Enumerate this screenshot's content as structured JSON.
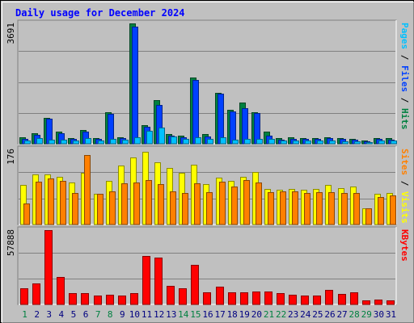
{
  "title": "Daily usage for December 2024",
  "chart_data": [
    {
      "type": "bar",
      "panel": "hits-files-pages",
      "y_max_label": "3691",
      "ylim": [
        0,
        3691
      ],
      "right_label": [
        {
          "text": "Pages",
          "color": "#00c0ff"
        },
        {
          "text": " / ",
          "color": "#000000"
        },
        {
          "text": "Files",
          "color": "#0040ff"
        },
        {
          "text": " / ",
          "color": "#000000"
        },
        {
          "text": "Hits",
          "color": "#008040"
        }
      ],
      "categories": [
        "1",
        "2",
        "3",
        "4",
        "5",
        "6",
        "7",
        "8",
        "9",
        "10",
        "11",
        "12",
        "13",
        "14",
        "15",
        "16",
        "17",
        "18",
        "19",
        "20",
        "21",
        "22",
        "23",
        "24",
        "25",
        "26",
        "27",
        "28",
        "29",
        "30",
        "31"
      ],
      "series": [
        {
          "name": "Hits",
          "color": "#008040",
          "values": [
            190,
            330,
            800,
            380,
            180,
            430,
            170,
            970,
            210,
            3690,
            580,
            1340,
            290,
            240,
            2030,
            290,
            1560,
            1040,
            1270,
            970,
            370,
            170,
            190,
            180,
            170,
            210,
            170,
            160,
            110,
            180,
            170
          ]
        },
        {
          "name": "Files",
          "color": "#0040ff",
          "values": [
            160,
            280,
            760,
            330,
            150,
            370,
            140,
            920,
            170,
            3590,
            520,
            1200,
            250,
            200,
            1950,
            230,
            1530,
            1000,
            1090,
            930,
            250,
            130,
            160,
            150,
            150,
            170,
            140,
            130,
            80,
            140,
            130
          ]
        },
        {
          "name": "Pages",
          "color": "#00c0ff",
          "values": [
            110,
            170,
            130,
            120,
            110,
            170,
            90,
            150,
            130,
            210,
            400,
            500,
            220,
            150,
            210,
            140,
            210,
            130,
            150,
            140,
            140,
            110,
            110,
            90,
            90,
            100,
            70,
            70,
            60,
            90,
            90
          ]
        }
      ]
    },
    {
      "type": "bar",
      "panel": "visits-sites",
      "y_max_label": "176",
      "ylim": [
        0,
        176
      ],
      "right_label": [
        {
          "text": "Sites",
          "color": "#ff8000"
        },
        {
          "text": " / ",
          "color": "#000000"
        },
        {
          "text": "Visits",
          "color": "#ffff00"
        }
      ],
      "categories": [
        "1",
        "2",
        "3",
        "4",
        "5",
        "6",
        "7",
        "8",
        "9",
        "10",
        "11",
        "12",
        "13",
        "14",
        "15",
        "16",
        "17",
        "18",
        "19",
        "20",
        "21",
        "22",
        "23",
        "24",
        "25",
        "26",
        "27",
        "28",
        "29",
        "30",
        "31"
      ],
      "series": [
        {
          "name": "Visits",
          "color": "#ffff00",
          "values": [
            92,
            118,
            118,
            111,
            98,
            122,
            72,
            103,
            138,
            158,
            170,
            146,
            132,
            122,
            140,
            94,
            109,
            103,
            112,
            123,
            84,
            81,
            84,
            82,
            84,
            93,
            86,
            89,
            37,
            71,
            73
          ]
        },
        {
          "name": "Sites",
          "color": "#ff8000",
          "values": [
            50,
            100,
            108,
            102,
            73,
            162,
            72,
            77,
            97,
            98,
            105,
            95,
            78,
            73,
            96,
            76,
            100,
            89,
            104,
            98,
            75,
            77,
            77,
            74,
            75,
            76,
            73,
            74,
            37,
            64,
            69
          ]
        }
      ]
    },
    {
      "type": "bar",
      "panel": "kbytes",
      "y_max_label": "57888",
      "ylim": [
        0,
        57888
      ],
      "right_label": [
        {
          "text": "KBytes",
          "color": "#ff0000"
        }
      ],
      "categories": [
        "1",
        "2",
        "3",
        "4",
        "5",
        "6",
        "7",
        "8",
        "9",
        "10",
        "11",
        "12",
        "13",
        "14",
        "15",
        "16",
        "17",
        "18",
        "19",
        "20",
        "21",
        "22",
        "23",
        "24",
        "25",
        "26",
        "27",
        "28",
        "29",
        "30",
        "31"
      ],
      "series": [
        {
          "name": "KBytes",
          "color": "#ff0000",
          "values": [
            12500,
            16400,
            57600,
            21700,
            8600,
            8500,
            6900,
            7300,
            6900,
            8900,
            37900,
            36400,
            14700,
            12300,
            31000,
            9200,
            13800,
            9400,
            9400,
            10300,
            10100,
            9100,
            7600,
            7200,
            7100,
            11300,
            8000,
            9500,
            3100,
            3600,
            3200
          ]
        }
      ]
    }
  ],
  "x_labels": [
    "1",
    "2",
    "3",
    "4",
    "5",
    "6",
    "7",
    "8",
    "9",
    "10",
    "11",
    "12",
    "13",
    "14",
    "15",
    "16",
    "17",
    "18",
    "19",
    "20",
    "21",
    "22",
    "23",
    "24",
    "25",
    "26",
    "27",
    "28",
    "29",
    "30",
    "31"
  ],
  "weekend_days": [
    "1",
    "7",
    "8",
    "14",
    "15",
    "21",
    "22",
    "28",
    "29"
  ],
  "colors": {
    "background": "#c0c0c0",
    "weekday_label": "#000080",
    "weekend_label": "#008040",
    "title": "#0000ff",
    "gridline": "#808080"
  }
}
